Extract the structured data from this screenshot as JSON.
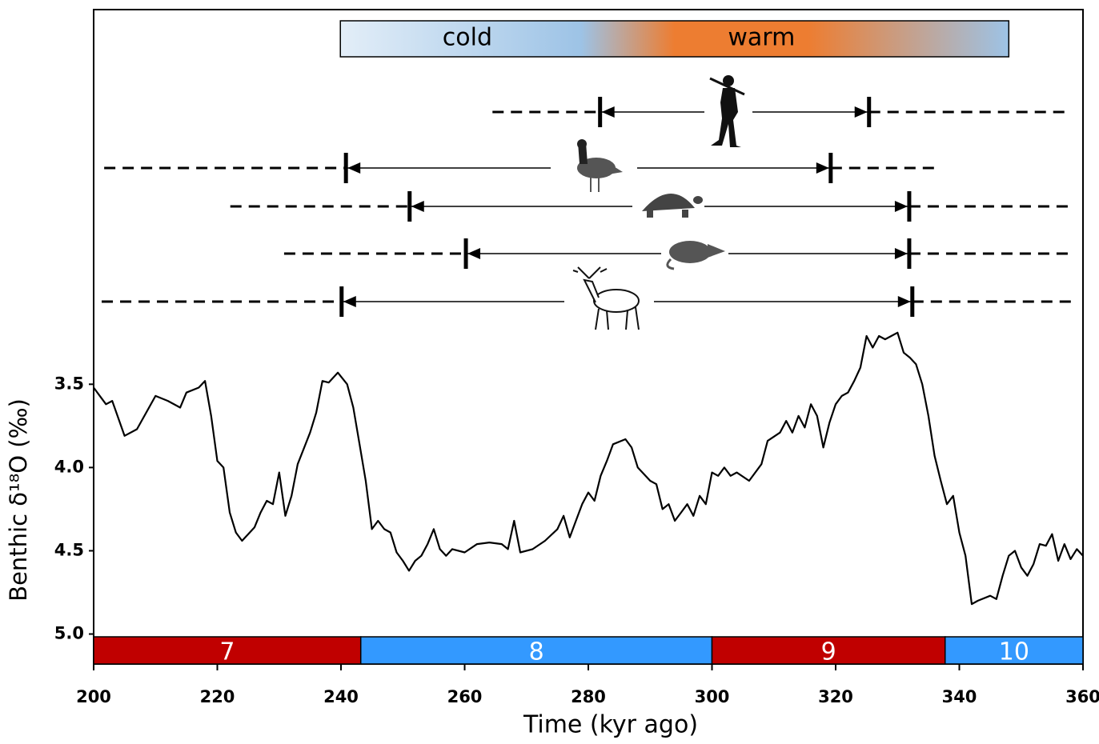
{
  "chart_data": {
    "type": "line",
    "x_label": "Time (kyr ago)",
    "y_label": "Benthic δ¹⁸O (‰)",
    "xlim": [
      200,
      360
    ],
    "xticks": [
      200,
      220,
      240,
      260,
      280,
      300,
      320,
      340,
      360
    ],
    "ylim": [
      5.18,
      1.25
    ],
    "yticks": [
      3.5,
      {
        "value": 4.0,
        "label": "4.0"
      },
      4.5,
      {
        "value": 5.0,
        "label": "5.0"
      }
    ],
    "color": "#000000",
    "x": [
      200,
      202,
      203,
      205,
      207,
      210,
      212,
      214,
      215,
      217,
      218,
      219,
      220,
      221,
      222,
      223,
      224,
      226,
      227,
      228,
      229,
      230,
      231,
      232,
      233,
      235,
      236,
      237,
      238,
      239.5,
      241,
      242,
      243,
      244,
      245,
      246,
      247,
      248,
      249,
      250,
      251,
      252,
      253,
      254,
      255,
      256,
      257,
      258,
      260,
      262,
      264,
      266,
      267,
      268,
      269,
      271,
      273,
      275,
      276,
      277,
      278,
      279,
      280,
      281,
      282,
      283,
      284,
      286,
      287,
      288,
      290,
      291,
      292,
      293,
      294,
      295,
      296,
      297,
      298,
      299,
      300,
      301,
      302,
      303,
      304,
      306,
      308,
      309,
      311,
      312,
      313,
      314,
      315,
      316,
      317,
      318,
      319,
      320,
      321,
      322,
      323,
      324,
      325,
      326,
      327,
      328,
      329,
      330,
      331,
      332,
      333,
      334,
      335,
      336,
      337,
      338,
      339,
      340,
      341,
      342,
      343,
      345,
      346,
      347,
      348,
      349,
      350,
      351,
      352,
      353,
      354,
      355,
      356,
      357,
      358,
      359,
      360
    ],
    "values": [
      3.52,
      3.62,
      3.6,
      3.81,
      3.77,
      3.57,
      3.6,
      3.64,
      3.55,
      3.52,
      3.48,
      3.69,
      3.96,
      4.0,
      4.27,
      4.39,
      4.44,
      4.36,
      4.27,
      4.2,
      4.22,
      4.03,
      4.29,
      4.17,
      3.98,
      3.79,
      3.67,
      3.48,
      3.49,
      3.43,
      3.5,
      3.64,
      3.86,
      4.08,
      4.37,
      4.32,
      4.37,
      4.39,
      4.51,
      4.56,
      4.62,
      4.56,
      4.53,
      4.46,
      4.37,
      4.49,
      4.53,
      4.49,
      4.51,
      4.46,
      4.45,
      4.46,
      4.49,
      4.32,
      4.51,
      4.49,
      4.44,
      4.37,
      4.29,
      4.42,
      4.32,
      4.22,
      4.15,
      4.2,
      4.05,
      3.96,
      3.86,
      3.83,
      3.88,
      4.0,
      4.08,
      4.1,
      4.25,
      4.22,
      4.32,
      4.27,
      4.22,
      4.29,
      4.17,
      4.22,
      4.03,
      4.05,
      4.0,
      4.05,
      4.03,
      4.08,
      3.98,
      3.84,
      3.79,
      3.72,
      3.79,
      3.69,
      3.76,
      3.62,
      3.69,
      3.88,
      3.73,
      3.62,
      3.57,
      3.55,
      3.48,
      3.4,
      3.21,
      3.28,
      3.21,
      3.23,
      3.21,
      3.19,
      3.31,
      3.34,
      3.38,
      3.5,
      3.69,
      3.93,
      4.08,
      4.22,
      4.17,
      4.39,
      4.53,
      4.82,
      4.8,
      4.77,
      4.79,
      4.65,
      4.53,
      4.5,
      4.6,
      4.65,
      4.58,
      4.46,
      4.47,
      4.4,
      4.56,
      4.46,
      4.55,
      4.49,
      4.53
    ],
    "stages": [
      {
        "label": "7",
        "start": 200,
        "end": 243.2,
        "color": "#c00000"
      },
      {
        "label": "8",
        "start": 243.2,
        "end": 300,
        "color": "#3399ff"
      },
      {
        "label": "9",
        "start": 300,
        "end": 337.7,
        "color": "#c00000"
      },
      {
        "label": "10",
        "start": 337.7,
        "end": 360,
        "color": "#3399ff"
      }
    ],
    "climate_bar": {
      "labels": [
        "cold",
        "warm"
      ],
      "start": 239.9,
      "end": 348
    },
    "ranges": [
      {
        "dash_from": 264.5,
        "from": 281.9,
        "to": 325.4,
        "dash_to": 358
      },
      {
        "dash_from": 201.7,
        "from": 240.8,
        "to": 319.2,
        "dash_to": 337
      },
      {
        "dash_from": 222.1,
        "from": 251.1,
        "to": 331.9,
        "dash_to": 358
      },
      {
        "dash_from": 230.8,
        "from": 260.2,
        "to": 331.9,
        "dash_to": 358
      },
      {
        "dash_from": 201.3,
        "from": 240.1,
        "to": 332.4,
        "dash_to": 358.7
      }
    ]
  }
}
